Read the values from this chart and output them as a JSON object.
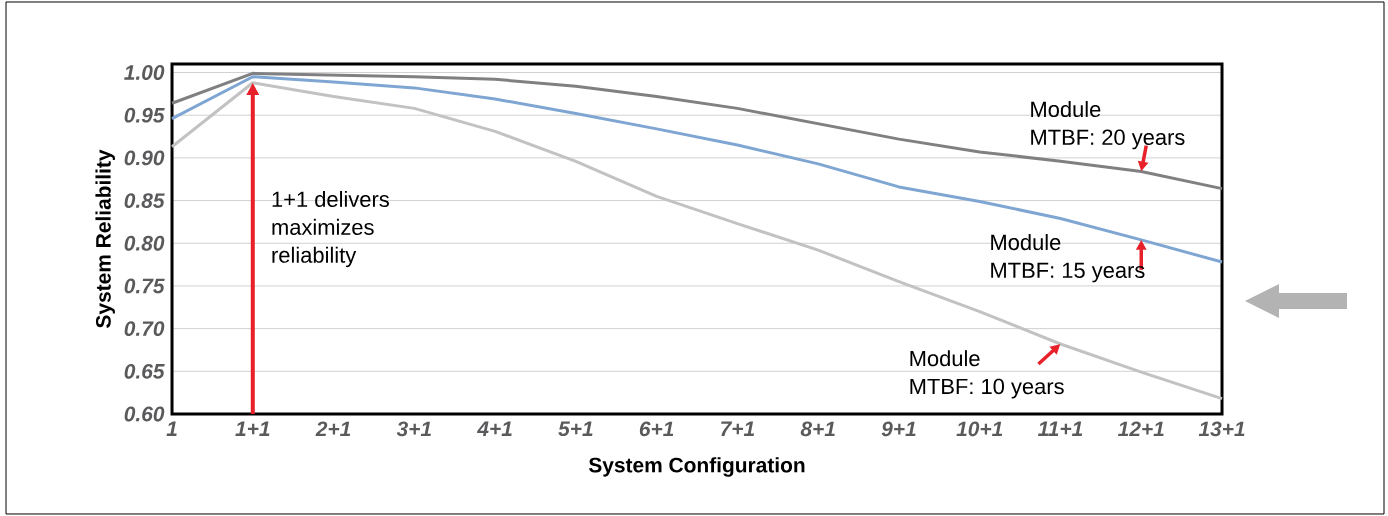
{
  "chart_data": {
    "type": "line",
    "xlabel": "System Configuration",
    "ylabel": "System Reliability",
    "categories": [
      "1",
      "1+1",
      "2+1",
      "3+1",
      "4+1",
      "5+1",
      "6+1",
      "7+1",
      "8+1",
      "9+1",
      "10+1",
      "11+1",
      "12+1",
      "13+1"
    ],
    "series": [
      {
        "color": "#808083",
        "values": [
          0.964,
          0.999,
          0.997,
          0.995,
          0.992,
          0.984,
          0.972,
          0.958,
          0.94,
          0.922,
          0.907,
          0.896,
          0.884,
          0.864
        ]
      },
      {
        "color": "#7fa6d2",
        "values": [
          0.946,
          0.995,
          0.989,
          0.982,
          0.969,
          0.952,
          0.934,
          0.915,
          0.893,
          0.866,
          0.849,
          0.829,
          0.804,
          0.778
        ]
      },
      {
        "color": "#c2c2c2",
        "values": [
          0.913,
          0.988,
          0.972,
          0.958,
          0.931,
          0.896,
          0.855,
          0.823,
          0.792,
          0.755,
          0.72,
          0.682,
          0.649,
          0.618
        ]
      }
    ],
    "ylim": [
      0.6,
      1.01
    ],
    "yticks": [
      {
        "value": 0.6,
        "label": "0.60"
      },
      {
        "value": 0.65,
        "label": "0.65"
      },
      {
        "value": 0.7,
        "label": "0.70"
      },
      {
        "value": 0.75,
        "label": "0.75"
      },
      {
        "value": 0.8,
        "label": "0.80"
      },
      {
        "value": 0.85,
        "label": "0.85"
      },
      {
        "value": 0.9,
        "label": "0.90"
      },
      {
        "value": 0.95,
        "label": "0.95"
      },
      {
        "value": 1.0,
        "label": "1.00"
      }
    ],
    "grid": "y",
    "ref_lines": [
      {
        "axis": "x",
        "value": "1+1",
        "label": "1+1 delivers maximizes reliability",
        "color": "#e8202a"
      }
    ],
    "annotations": [
      {
        "text": "Module MTBF: 20 years",
        "x": "12+1",
        "y": 0.884
      },
      {
        "text": "Module MTBF: 15 years",
        "x": "12+1",
        "y": 0.804
      },
      {
        "text": "Module MTBF: 10 years",
        "x": "11+1",
        "y": 0.682
      }
    ]
  }
}
